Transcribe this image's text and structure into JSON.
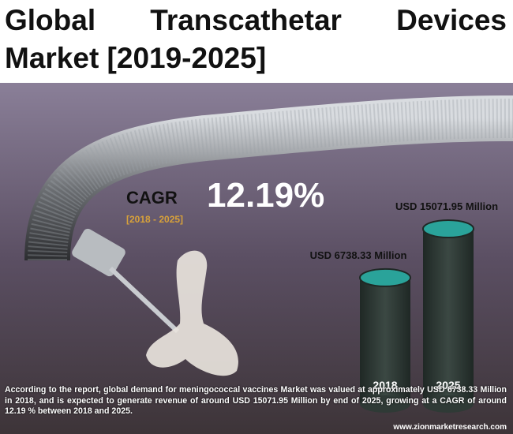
{
  "chart_data": {
    "type": "cylinder",
    "title": "Global Transcathetar Devices Market [2019-2025]",
    "cagr_label": "CAGR",
    "cagr_value": "12.19%",
    "cagr_period": "[2018 - 2025]",
    "categories": [
      "2018",
      "2025"
    ],
    "values": [
      6738.33,
      15071.95
    ],
    "value_labels": [
      "USD  6738.33 Million",
      "USD 15071.95 Million"
    ],
    "top_color": "#2aa39a",
    "body_color": "#2f3a36",
    "description": "According to the report, global demand for meningococcal vaccines Market was valued at approximately USD 6738.33 Million in 2018, and is expected to generate revenue of around USD 15071.95 Million by end of 2025, growing at a CAGR of around 12.19 % between 2018 and 2025.",
    "website": "www.zionmarketresearch.com"
  }
}
